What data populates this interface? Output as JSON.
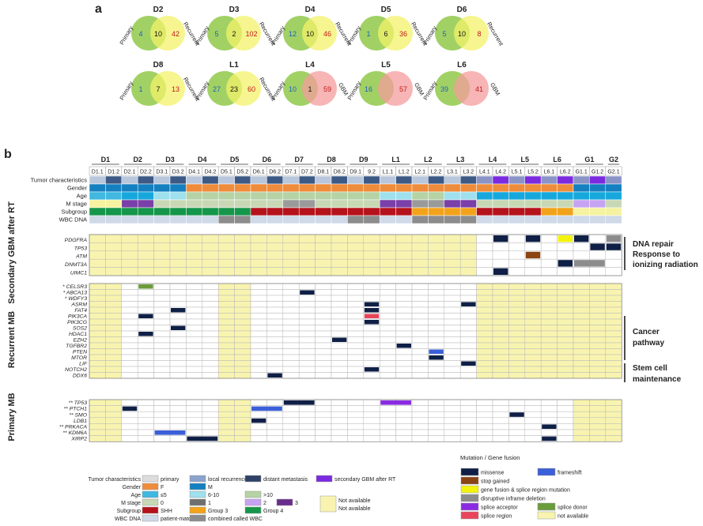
{
  "panel_a": {
    "label": "a",
    "venns": [
      {
        "title": "D2",
        "left_label": "Primary",
        "right_label": "Recurrent",
        "left": "4",
        "mid": "10",
        "right": "42",
        "right_color": "yellow"
      },
      {
        "title": "D3",
        "left_label": "Primary",
        "right_label": "Recurrent",
        "left": "5",
        "mid": "2",
        "right": "102",
        "right_color": "yellow"
      },
      {
        "title": "D4",
        "left_label": "Primary",
        "right_label": "Recurrent",
        "left": "12",
        "mid": "10",
        "right": "46",
        "right_color": "yellow"
      },
      {
        "title": "D5",
        "left_label": "Primary",
        "right_label": "Recurrent",
        "left": "1",
        "mid": "6",
        "right": "36",
        "right_color": "yellow"
      },
      {
        "title": "D6",
        "left_label": "Primary",
        "right_label": "Recurrent",
        "left": "5",
        "mid": "10",
        "right": "8",
        "right_color": "yellow"
      },
      {
        "title": "D8",
        "left_label": "Primary",
        "right_label": "Recurrent",
        "left": "1",
        "mid": "7",
        "right": "13",
        "right_color": "yellow"
      },
      {
        "title": "L1",
        "left_label": "Primary",
        "right_label": "Recurrent",
        "left": "27",
        "mid": "23",
        "right": "60",
        "right_color": "yellow"
      },
      {
        "title": "L4",
        "left_label": "Primary",
        "right_label": "GBM",
        "left": "10",
        "mid": "1",
        "right": "59",
        "right_color": "pink"
      },
      {
        "title": "L5",
        "left_label": "Primary",
        "right_label": "GBM",
        "left": "16",
        "mid": "",
        "right": "57",
        "right_color": "pink"
      },
      {
        "title": "L6",
        "left_label": "Primary",
        "right_label": "GBM",
        "left": "39",
        "mid": "",
        "right": "41",
        "right_color": "pink"
      }
    ]
  },
  "panel_b": {
    "label": "b",
    "groups": [
      "D1",
      "D2",
      "D3",
      "D4",
      "D5",
      "D6",
      "D7",
      "D8",
      "D9",
      "L1",
      "L2",
      "L3",
      "L4",
      "L5",
      "L6",
      "G1",
      "G2"
    ],
    "samples": [
      "D1.1",
      "D1.2",
      "D2.1",
      "D2.2",
      "D3.1",
      "D3.2",
      "D4.1",
      "D4.2",
      "D5.1",
      "D5.2",
      "D6.1",
      "D6.2",
      "D7.1",
      "D7.2",
      "D8.1",
      "D8.2",
      "D9.1",
      "9.2",
      "L1.1",
      "L1.2",
      "L2.1",
      "L2.2",
      "L3.1",
      "L3.2",
      "L4.1",
      "L4.2",
      "L5.1",
      "L5.2",
      "L6.1",
      "L6.2",
      "G1.1",
      "G1.2",
      "G2.1"
    ],
    "annotation_rows": [
      "Tumor characteristics",
      "Gender",
      "Age",
      "M stage",
      "Subgroup",
      "WBC DNA"
    ],
    "section_labels": [
      "Secondary GBM after RT",
      "Recurrent MB",
      "Primary MB"
    ],
    "genes_gbm": [
      "PDGFRA",
      "TP53",
      "ATM",
      "DNMT3A",
      "UIMC1"
    ],
    "genes_rec": [
      "* CELSR3",
      "* ABCA13",
      "* WDFY3",
      "ASRM",
      "FAT4",
      "PIK3CA",
      "PIK3CG",
      "SOS2",
      "HDAC1",
      "EZH2",
      "TGFBR2",
      "PTEN",
      "MTOR",
      "LIF",
      "NOTCH2",
      "DDX6"
    ],
    "genes_prim": [
      "** TP53",
      "** PTCH1",
      "** SMO",
      "LDB1",
      "** PRKACA",
      "** KDM6A",
      "XIRP2"
    ],
    "side_labels": [
      "DNA repair",
      "Response to",
      "ionizing radiation",
      "Cancer",
      "pathway",
      "Stem cell",
      "maintenance"
    ],
    "legend": {
      "title": "Mutation / Gene fusion",
      "row_labels": [
        "Tumor characteristics",
        "Gender",
        "Age",
        "M stage",
        "Subgroup",
        "WBC DNA"
      ],
      "items": [
        [
          "primary",
          "local recurrence",
          "distant metastasis",
          "secondary GBM after RT"
        ],
        [
          "F",
          "M"
        ],
        [
          "≤5",
          "6-10",
          ">10"
        ],
        [
          "0",
          "1",
          "2",
          "3"
        ],
        [
          "SHH",
          "Group 3",
          "Group 4"
        ],
        [
          "patient-matched",
          "combined called WBC"
        ]
      ],
      "not_available_1": "Not available",
      "not_available_2": "Not available",
      "mutations": [
        "missense",
        "frameshift",
        "stop gained",
        "gene fusion &  splice region mutation",
        "disruptive inframe deletion",
        "splice acceptor",
        "splice donor",
        "splice region",
        "not available"
      ]
    },
    "colors": {
      "na": "#f8f4b0",
      "missense": "#0f1f46",
      "frameshift": "#3a5fd8",
      "stop_gained": "#8b4513",
      "fusion": "#f3f30e",
      "deletion": "#8c8c8c",
      "splice_acceptor": "#8a2be2",
      "splice_donor": "#6a9c3c",
      "splice_region": "#e8455a"
    }
  }
}
